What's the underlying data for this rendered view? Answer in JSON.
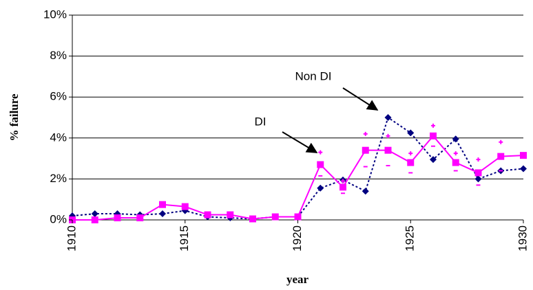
{
  "chart_data": {
    "type": "line",
    "x_label": "year",
    "y_label": "% failure",
    "x": [
      1910,
      1911,
      1912,
      1913,
      1914,
      1915,
      1916,
      1917,
      1918,
      1919,
      1920,
      1921,
      1922,
      1923,
      1924,
      1925,
      1926,
      1927,
      1928,
      1929,
      1930
    ],
    "xlim": [
      1910,
      1930
    ],
    "xticks": [
      1910,
      1915,
      1920,
      1925,
      1930
    ],
    "ylim": [
      0,
      10
    ],
    "yticks": [
      {
        "value": 0,
        "label": "0%"
      },
      {
        "value": 2,
        "label": "2%"
      },
      {
        "value": 4,
        "label": "4%"
      },
      {
        "value": 6,
        "label": "6%"
      },
      {
        "value": 8,
        "label": "8%"
      },
      {
        "value": 10,
        "label": "10%"
      }
    ],
    "grid": true,
    "series": [
      {
        "name": "Non DI",
        "color": "#000080",
        "dash": true,
        "marker": "diamond",
        "values": [
          0.2,
          0.3,
          0.3,
          0.25,
          0.3,
          0.45,
          0.15,
          0.1,
          0.05,
          0.15,
          0.15,
          1.55,
          1.95,
          1.4,
          5.0,
          4.25,
          2.95,
          3.95,
          2.0,
          2.4,
          2.5
        ]
      },
      {
        "name": "DI",
        "color": "#ff00ff",
        "dash": false,
        "marker": "square",
        "values": [
          0,
          0,
          0.1,
          0.1,
          0.75,
          0.65,
          0.25,
          0.25,
          0.05,
          0.15,
          0.15,
          2.7,
          1.6,
          3.4,
          3.4,
          2.8,
          4.1,
          2.8,
          2.3,
          3.1,
          3.15
        ],
        "upper": [
          null,
          null,
          null,
          null,
          null,
          null,
          null,
          null,
          null,
          null,
          null,
          3.3,
          1.9,
          4.2,
          4.1,
          3.25,
          4.6,
          3.25,
          2.95,
          3.8,
          null
        ],
        "lower": [
          null,
          null,
          null,
          null,
          null,
          null,
          null,
          null,
          null,
          null,
          null,
          2.15,
          1.3,
          2.6,
          2.65,
          2.3,
          3.6,
          2.4,
          1.7,
          2.4,
          null
        ]
      }
    ],
    "annotations": [
      {
        "text": "Non DI"
      },
      {
        "text": "DI"
      }
    ]
  }
}
